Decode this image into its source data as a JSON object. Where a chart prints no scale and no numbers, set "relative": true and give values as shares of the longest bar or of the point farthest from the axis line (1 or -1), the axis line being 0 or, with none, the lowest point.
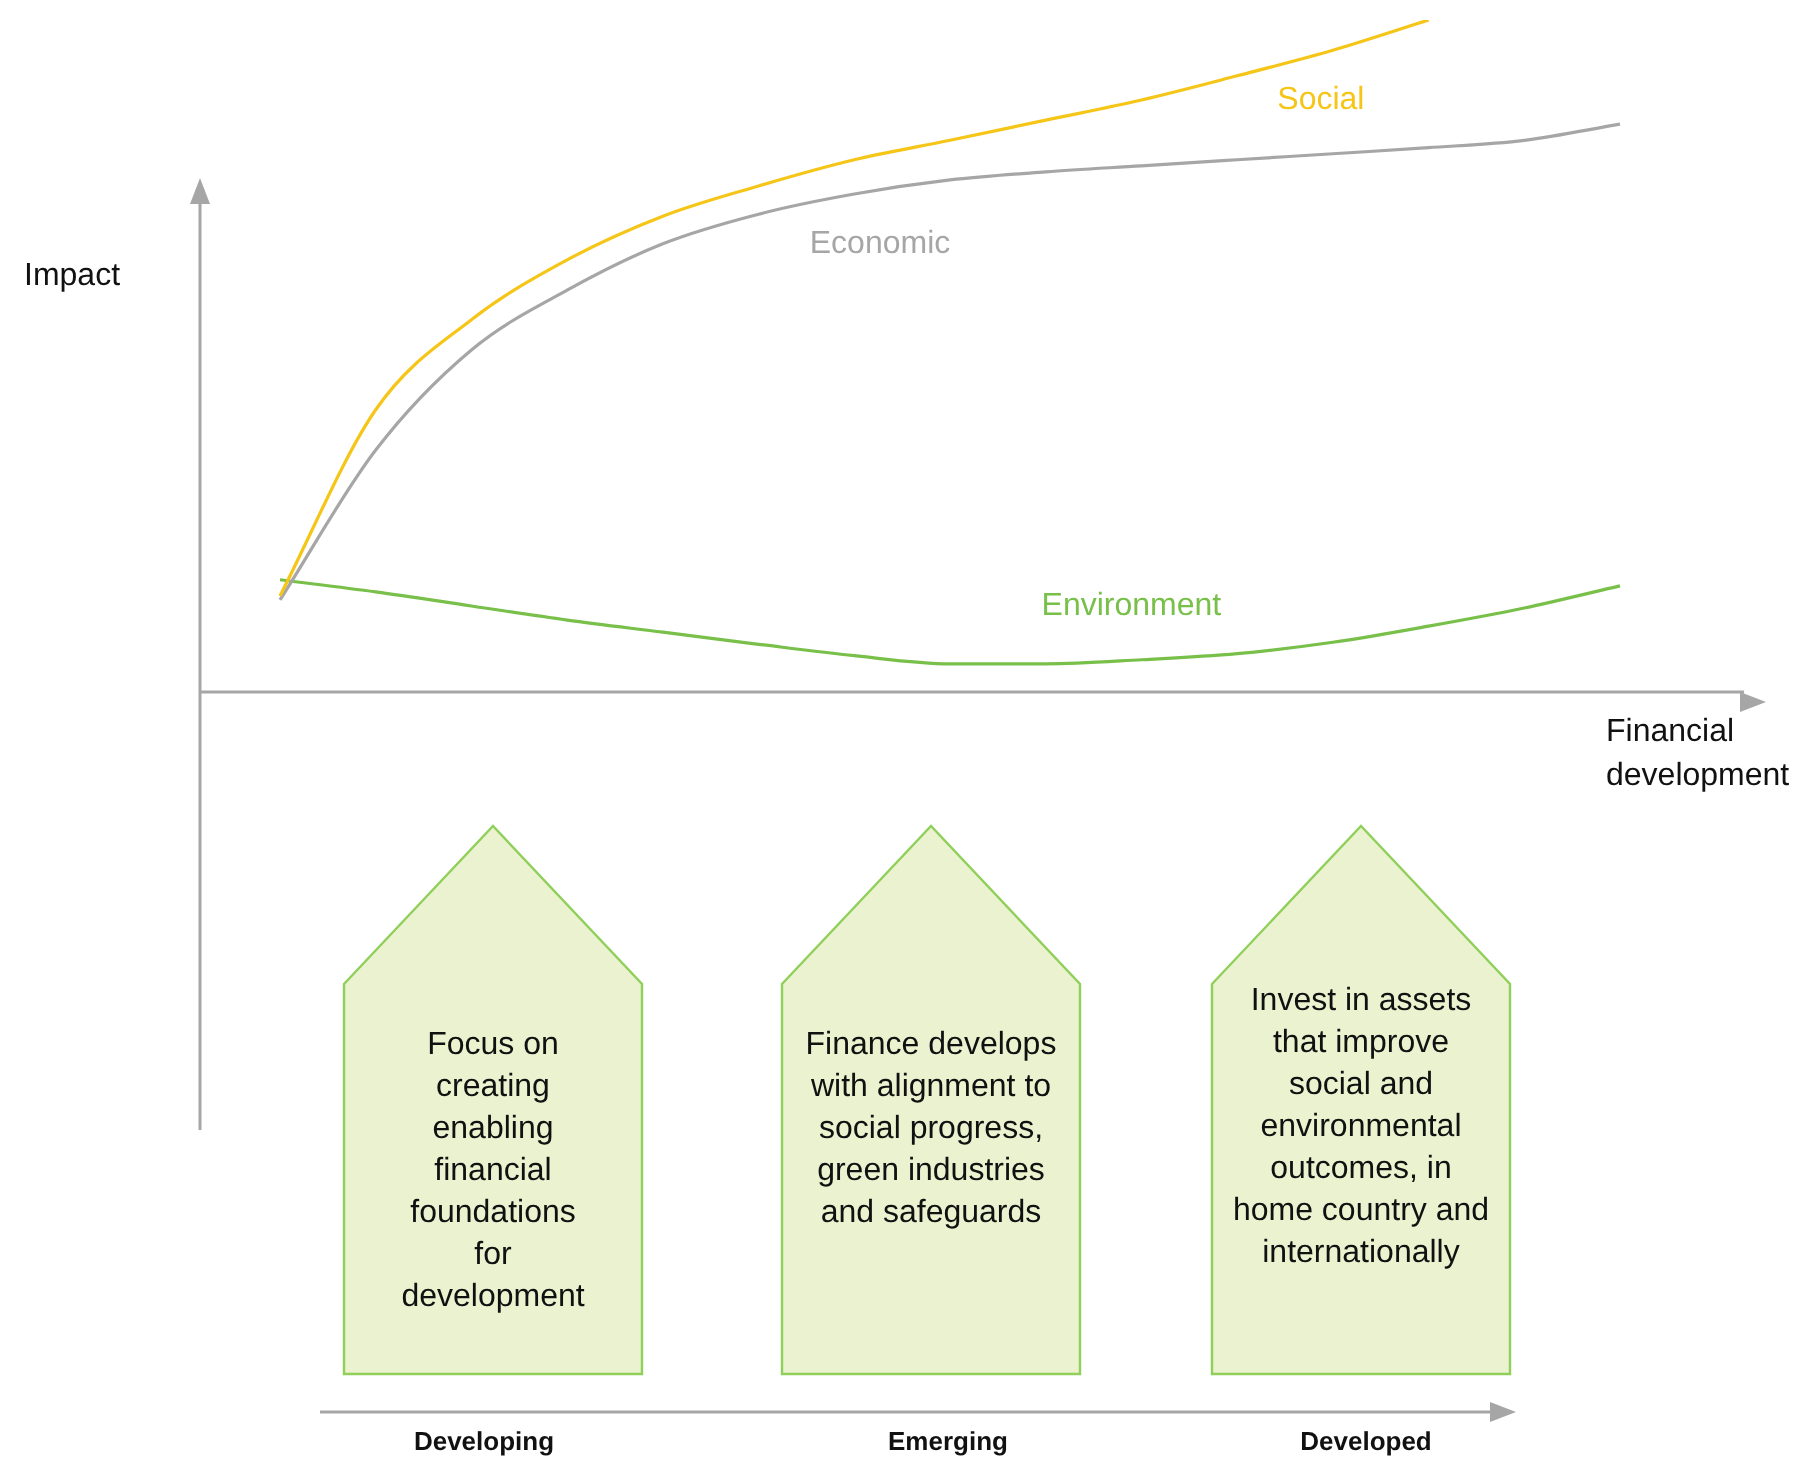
{
  "chart_data": {
    "type": "line",
    "relative": true,
    "xlabel": "Financial development",
    "ylabel": "Impact",
    "categories": [
      null,
      null,
      null,
      null,
      null,
      null,
      null,
      null,
      null,
      null,
      null,
      null,
      null,
      null,
      null
    ],
    "series": [
      {
        "name": "Social",
        "color": "#f5c518",
        "values": [
          0.143,
          0.42,
          0.554,
          0.643,
          0.708,
          0.753,
          0.792,
          0.821,
          0.851,
          0.881,
          0.917,
          0.955,
          1,
          null,
          null
        ]
      },
      {
        "name": "Economic",
        "color": "#a6a6a6",
        "values": [
          0.137,
          0.36,
          0.509,
          0.598,
          0.667,
          0.711,
          0.741,
          0.762,
          0.774,
          0.783,
          0.792,
          0.801,
          0.81,
          0.821,
          0.845
        ]
      },
      {
        "name": "Environment",
        "color": "#78c04a",
        "values": [
          0.167,
          0.149,
          0.128,
          0.107,
          0.089,
          0.071,
          0.054,
          0.042,
          0.042,
          0.048,
          0.057,
          0.074,
          0.098,
          0.125,
          0.158
        ]
      }
    ],
    "annotations": [
      "Focus on creating enabling financial foundations for development",
      "Finance develops with alignment to social progress, green industries and safeguards",
      "Invest in assets that improve social and environmental outcomes, in home country and internationally",
      "Developing",
      "Emerging",
      "Developed"
    ],
    "legend": false,
    "marker": "none",
    "line_style": "solid"
  }
}
